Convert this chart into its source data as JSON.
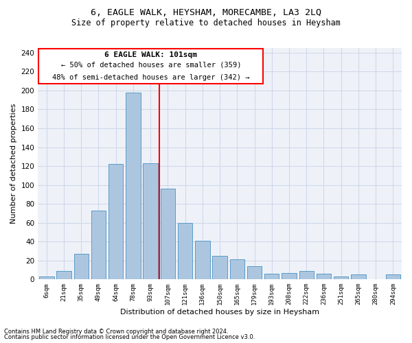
{
  "title": "6, EAGLE WALK, HEYSHAM, MORECAMBE, LA3 2LQ",
  "subtitle": "Size of property relative to detached houses in Heysham",
  "xlabel": "Distribution of detached houses by size in Heysham",
  "ylabel": "Number of detached properties",
  "categories": [
    "6sqm",
    "21sqm",
    "35sqm",
    "49sqm",
    "64sqm",
    "78sqm",
    "93sqm",
    "107sqm",
    "121sqm",
    "136sqm",
    "150sqm",
    "165sqm",
    "179sqm",
    "193sqm",
    "208sqm",
    "222sqm",
    "236sqm",
    "251sqm",
    "265sqm",
    "280sqm",
    "294sqm"
  ],
  "values": [
    3,
    9,
    27,
    73,
    122,
    198,
    123,
    96,
    60,
    41,
    25,
    21,
    14,
    6,
    7,
    9,
    6,
    3,
    5,
    0,
    5
  ],
  "bar_color": "#adc6e0",
  "bar_edge_color": "#5a9ac8",
  "grid_color": "#d0d8e8",
  "background_color": "#eef2f8",
  "vline_x_pos": 6.5,
  "vline_color": "red",
  "annotation_title": "6 EAGLE WALK: 101sqm",
  "annotation_line1": "← 50% of detached houses are smaller (359)",
  "annotation_line2": "48% of semi-detached houses are larger (342) →",
  "annotation_box_color": "#ffffff",
  "annotation_box_edge": "red",
  "ylim": [
    0,
    245
  ],
  "yticks": [
    0,
    20,
    40,
    60,
    80,
    100,
    120,
    140,
    160,
    180,
    200,
    220,
    240
  ],
  "footnote1": "Contains HM Land Registry data © Crown copyright and database right 2024.",
  "footnote2": "Contains public sector information licensed under the Open Government Licence v3.0."
}
